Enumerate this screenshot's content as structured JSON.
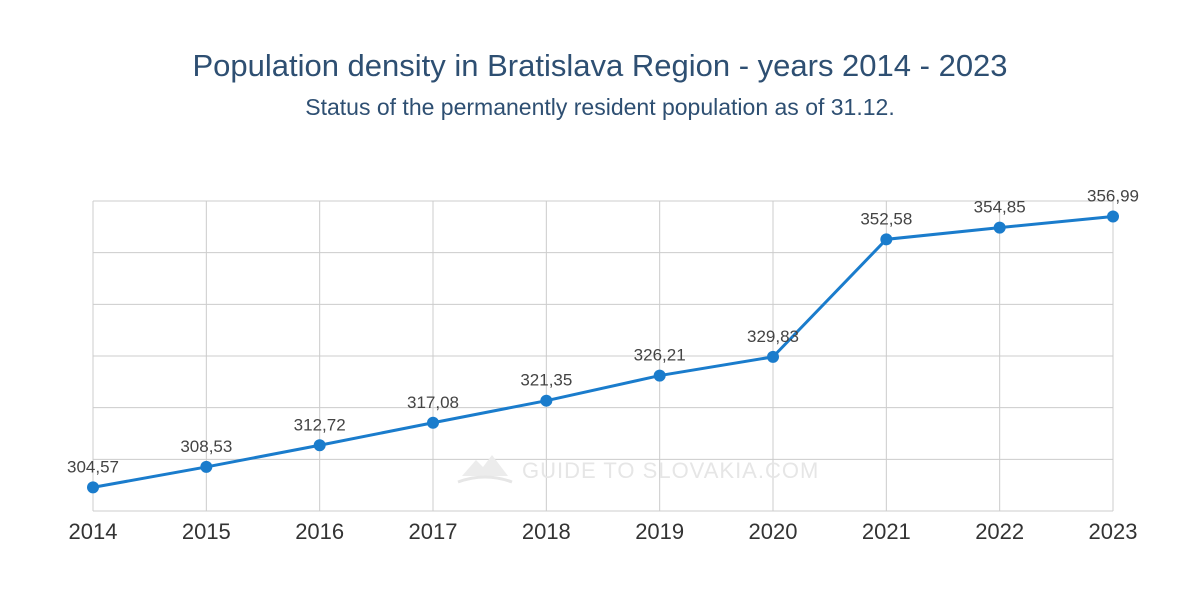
{
  "chart_data": {
    "type": "line",
    "title": "Population density in Bratislava Region - years 2014 - 2023",
    "subtitle": "Status of the permanently resident population as of 31.12.",
    "x": [
      "2014",
      "2015",
      "2016",
      "2017",
      "2018",
      "2019",
      "2020",
      "2021",
      "2022",
      "2023"
    ],
    "series": [
      {
        "values": [
          304.57,
          308.53,
          312.72,
          317.08,
          321.35,
          326.21,
          329.83,
          352.58,
          354.85,
          356.99
        ],
        "labels": [
          "304,57",
          "308,53",
          "312,72",
          "317,08",
          "321,35",
          "326,21",
          "329,83",
          "352,58",
          "354,85",
          "356,99"
        ],
        "color": "#1a7ccc"
      }
    ],
    "ylim": [
      300,
      360
    ],
    "grid": true,
    "legend": "none"
  },
  "watermark": "GUIDE TO SLOVAKIA.COM",
  "colors": {
    "title": "#2e4f72",
    "line": "#1a7ccc",
    "grid": "#cccccc"
  }
}
